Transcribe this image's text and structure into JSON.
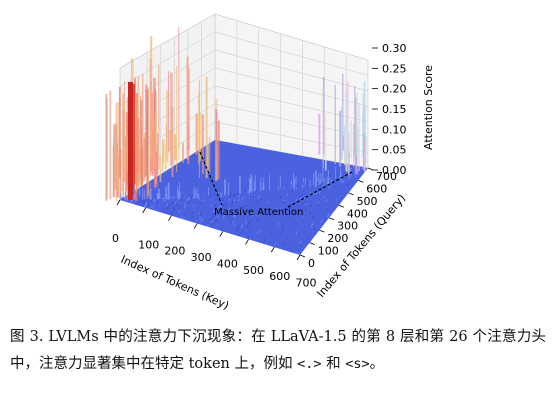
{
  "figure": {
    "chart_data": {
      "type": "surface3d",
      "x_axis": {
        "label": "Index of Tokens (Key)",
        "ticks": [
          "0",
          "100",
          "200",
          "300",
          "400",
          "500",
          "600",
          "700"
        ]
      },
      "y_axis": {
        "label": "Index of Tokens (Query)",
        "ticks": [
          "0",
          "100",
          "200",
          "300",
          "400",
          "500",
          "600",
          "700"
        ]
      },
      "z_axis": {
        "label": "Attention Score",
        "ticks": [
          "0.00",
          "0.05",
          "0.10",
          "0.15",
          "0.20",
          "0.25",
          "0.30"
        ],
        "zlim": [
          0,
          0.3
        ]
      },
      "annotation": "Massive Attention",
      "colormap": "coolwarm",
      "colors": {
        "low": "#4a62e0",
        "high": "#d62a2a"
      }
    }
  },
  "caption": {
    "prefix": "图 3. LVLMs 中的注意力下沉现象：在 LLaVA-1.5 的第 8 层和第 26 个注意力头中，注意力显著集中在特定 token 上，例如 ",
    "token1": "<.>",
    "middle": " 和 ",
    "token2": "<s>",
    "suffix": "。"
  }
}
